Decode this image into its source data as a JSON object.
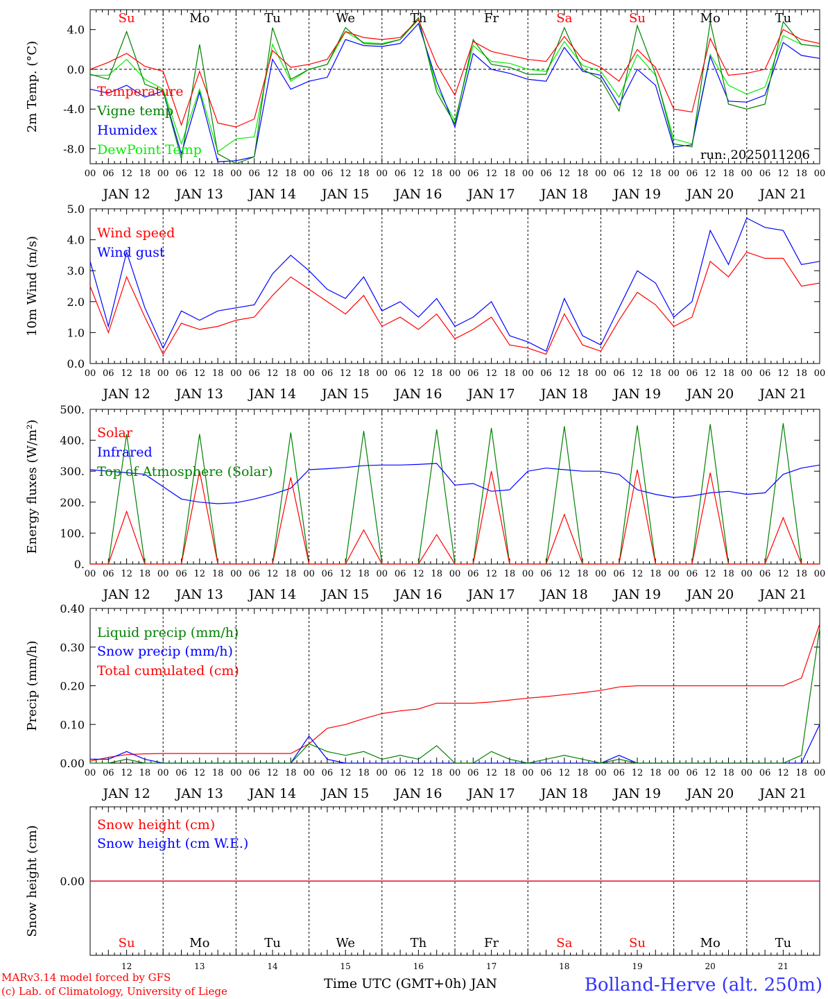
{
  "days": [
    "JAN 12",
    "JAN 13",
    "JAN 14",
    "JAN 15",
    "JAN 16",
    "JAN 17",
    "JAN 18",
    "JAN 19",
    "JAN 20",
    "JAN 21"
  ],
  "weekdays": [
    "Su",
    "Mo",
    "Tu",
    "We",
    "Th",
    "Fr",
    "Sa",
    "Su",
    "Mo",
    "Tu"
  ],
  "weekday_colors": [
    "#ff0000",
    "#000000",
    "#000000",
    "#000000",
    "#000000",
    "#000000",
    "#ff0000",
    "#ff0000",
    "#000000",
    "#000000"
  ],
  "hour_ticks": [
    "00",
    "06",
    "12",
    "18"
  ],
  "bottom_days": [
    "12",
    "13",
    "14",
    "15",
    "16",
    "17",
    "18",
    "19",
    "20",
    "21"
  ],
  "colors": {
    "red": "#ff0000",
    "green": "#008000",
    "blue": "#0000ff",
    "lightgreen": "#00ee00",
    "title_blue": "#3333ff"
  },
  "footer": {
    "model": "MARv3.14 model forced by GFS",
    "lab": "(c) Lab. of Climatology, University of Liege",
    "xlabel": "Time UTC (GMT+0h) JAN",
    "station": "Bolland-Herve (alt. 250m)"
  },
  "chart_data": [
    {
      "type": "line",
      "ylabel": "2m Temp. (°C)",
      "ylim": [
        -9.5,
        6.0
      ],
      "yticks": [
        "4.0",
        "0.0",
        "-4.0",
        "-8.0"
      ],
      "ytick_values": [
        4,
        0,
        -4,
        -8
      ],
      "zero_line": true,
      "run": "run: 2025011206",
      "x_hours": [
        0,
        6,
        12,
        18,
        24,
        30,
        36,
        42,
        48,
        54,
        60,
        66,
        72,
        78,
        84,
        90,
        96,
        102,
        108,
        114,
        120,
        126,
        132,
        138,
        144,
        150,
        156,
        162,
        168,
        174,
        180,
        186,
        192,
        198,
        204,
        210,
        216,
        222,
        228,
        234,
        240
      ],
      "series": [
        {
          "name": "Temperature",
          "color": "#ff0000",
          "values": [
            0.0,
            0.7,
            1.6,
            0.3,
            -0.2,
            -5.6,
            -0.2,
            -5.4,
            -5.8,
            -5.0,
            1.9,
            0.2,
            0.5,
            1.0,
            3.8,
            3.2,
            3.0,
            3.2,
            5.0,
            0.5,
            -2.6,
            2.8,
            1.8,
            1.4,
            1.0,
            0.8,
            3.3,
            1.0,
            0.2,
            -1.2,
            2.0,
            0.2,
            -4.0,
            -4.3,
            3.1,
            -0.6,
            -0.4,
            0.0,
            4.0,
            3.0,
            2.6
          ]
        },
        {
          "name": "Vigne temp",
          "color": "#008000",
          "values": [
            -0.5,
            -1.0,
            3.8,
            -1.5,
            -2.2,
            -9.0,
            2.5,
            -8.5,
            -9.5,
            -8.8,
            4.2,
            -1.0,
            0.0,
            0.5,
            4.2,
            2.6,
            2.5,
            3.0,
            5.2,
            -2.3,
            -5.5,
            3.0,
            0.5,
            0.2,
            -0.5,
            -0.5,
            4.2,
            0.0,
            -1.0,
            -4.2,
            4.4,
            -0.5,
            -7.5,
            -7.8,
            4.8,
            -3.5,
            -4.0,
            -3.5,
            4.8,
            2.5,
            2.3
          ]
        },
        {
          "name": "Humidex",
          "color": "#0000ff",
          "values": [
            -2.0,
            -2.4,
            -1.6,
            -2.8,
            -2.2,
            -8.5,
            -2.3,
            -9.3,
            -9.2,
            -8.8,
            1.0,
            -2.0,
            -1.2,
            -0.8,
            3.0,
            2.4,
            2.3,
            2.6,
            4.6,
            -1.2,
            -5.8,
            1.6,
            0.0,
            -0.4,
            -1.0,
            -1.2,
            2.2,
            -0.2,
            -0.6,
            -3.6,
            0.0,
            -1.6,
            -7.8,
            -7.6,
            1.3,
            -3.2,
            -3.3,
            -2.6,
            2.7,
            1.4,
            1.1
          ]
        },
        {
          "name": "DewPoint Temp",
          "color": "#00ee00",
          "values": [
            -0.6,
            -0.6,
            1.0,
            -1.0,
            -2.0,
            -7.5,
            -2.0,
            -8.3,
            -7.0,
            -6.8,
            2.5,
            -1.2,
            0.0,
            0.5,
            3.8,
            2.7,
            2.6,
            3.0,
            5.0,
            -1.8,
            -5.2,
            2.4,
            0.8,
            0.6,
            0.0,
            -0.2,
            2.8,
            0.4,
            -0.2,
            -2.8,
            1.5,
            -0.6,
            -7.0,
            -7.5,
            1.5,
            -1.6,
            -2.5,
            -1.8,
            3.4,
            2.5,
            2.3
          ]
        }
      ]
    },
    {
      "type": "line",
      "ylabel": "10m Wind (m/s)",
      "ylim": [
        0,
        5.0
      ],
      "yticks": [
        "5.0",
        "4.0",
        "3.0",
        "2.0",
        "1.0",
        "0.0"
      ],
      "ytick_values": [
        5,
        4,
        3,
        2,
        1,
        0
      ],
      "x_hours": [
        0,
        6,
        12,
        18,
        24,
        30,
        36,
        42,
        48,
        54,
        60,
        66,
        72,
        78,
        84,
        90,
        96,
        102,
        108,
        114,
        120,
        126,
        132,
        138,
        144,
        150,
        156,
        162,
        168,
        174,
        180,
        186,
        192,
        198,
        204,
        210,
        216,
        222,
        228,
        234,
        240
      ],
      "series": [
        {
          "name": "Wind speed",
          "color": "#ff0000",
          "values": [
            2.5,
            1.0,
            2.8,
            1.5,
            0.3,
            1.3,
            1.1,
            1.2,
            1.4,
            1.5,
            2.2,
            2.8,
            2.4,
            2.0,
            1.6,
            2.2,
            1.2,
            1.5,
            1.1,
            1.6,
            0.8,
            1.1,
            1.5,
            0.6,
            0.5,
            0.3,
            1.6,
            0.6,
            0.4,
            1.4,
            2.3,
            1.9,
            1.2,
            1.5,
            3.3,
            2.8,
            3.6,
            3.4,
            3.4,
            2.5,
            2.6
          ]
        },
        {
          "name": "Wind gust",
          "color": "#0000ff",
          "values": [
            3.3,
            1.2,
            3.6,
            1.8,
            0.5,
            1.7,
            1.4,
            1.7,
            1.8,
            1.9,
            2.9,
            3.5,
            3.0,
            2.4,
            2.1,
            2.8,
            1.7,
            2.0,
            1.5,
            2.1,
            1.2,
            1.5,
            2.0,
            0.9,
            0.7,
            0.4,
            2.1,
            0.9,
            0.6,
            1.8,
            3.0,
            2.6,
            1.5,
            2.0,
            4.3,
            3.2,
            4.7,
            4.4,
            4.3,
            3.2,
            3.3
          ]
        }
      ]
    },
    {
      "type": "line",
      "ylabel": "Energy fluxes (W/m²)",
      "ylim": [
        0,
        500
      ],
      "yticks": [
        "500.",
        "400.",
        "300.",
        "200.",
        "100.",
        "0."
      ],
      "ytick_values": [
        500,
        400,
        300,
        200,
        100,
        0
      ],
      "x_hours": [
        0,
        6,
        12,
        18,
        24,
        30,
        36,
        42,
        48,
        54,
        60,
        66,
        72,
        78,
        84,
        90,
        96,
        102,
        108,
        114,
        120,
        126,
        132,
        138,
        144,
        150,
        156,
        162,
        168,
        174,
        180,
        186,
        192,
        198,
        204,
        210,
        216,
        222,
        228,
        234,
        240
      ],
      "series": [
        {
          "name": "Solar",
          "color": "#ff0000",
          "values": [
            0,
            0,
            170,
            0,
            0,
            0,
            300,
            0,
            0,
            0,
            0,
            280,
            0,
            0,
            0,
            110,
            0,
            0,
            0,
            95,
            0,
            0,
            300,
            0,
            0,
            0,
            160,
            0,
            0,
            0,
            305,
            0,
            0,
            0,
            295,
            0,
            0,
            0,
            150,
            0,
            0
          ]
        },
        {
          "name": "Infrared",
          "color": "#0000ff",
          "values": [
            305,
            300,
            295,
            290,
            250,
            210,
            200,
            195,
            198,
            210,
            225,
            245,
            305,
            308,
            312,
            318,
            320,
            320,
            322,
            325,
            255,
            260,
            235,
            240,
            300,
            310,
            305,
            300,
            300,
            290,
            240,
            225,
            215,
            220,
            230,
            235,
            225,
            230,
            290,
            310,
            320
          ]
        },
        {
          "name": "Top of Atmosphere (Solar)",
          "color": "#008000",
          "values": [
            0,
            0,
            420,
            0,
            0,
            0,
            420,
            0,
            0,
            0,
            0,
            425,
            0,
            0,
            0,
            430,
            0,
            0,
            0,
            435,
            0,
            0,
            440,
            0,
            0,
            0,
            445,
            0,
            0,
            0,
            448,
            0,
            0,
            0,
            452,
            0,
            0,
            0,
            455,
            0,
            0
          ]
        }
      ]
    },
    {
      "type": "line",
      "ylabel": "Precip (mm/h)",
      "ylim": [
        0,
        0.4
      ],
      "yticks": [
        "0.40",
        "0.30",
        "0.20",
        "0.10",
        "0.00"
      ],
      "ytick_values": [
        0.4,
        0.3,
        0.2,
        0.1,
        0.0
      ],
      "x_hours": [
        0,
        6,
        12,
        18,
        24,
        30,
        36,
        42,
        48,
        54,
        60,
        66,
        72,
        78,
        84,
        90,
        96,
        102,
        108,
        114,
        120,
        126,
        132,
        138,
        144,
        150,
        156,
        162,
        168,
        174,
        180,
        186,
        192,
        198,
        204,
        210,
        216,
        222,
        228,
        234,
        240
      ],
      "series": [
        {
          "name": "Liquid precip (mm/h)",
          "color": "#008000",
          "values": [
            0.0,
            0.0,
            0.01,
            0.0,
            0.0,
            0.0,
            0.0,
            0.0,
            0.0,
            0.0,
            0.0,
            0.0,
            0.05,
            0.03,
            0.02,
            0.03,
            0.01,
            0.02,
            0.01,
            0.045,
            0.0,
            0.0,
            0.03,
            0.01,
            0.0,
            0.01,
            0.02,
            0.01,
            0.0,
            0.01,
            0.0,
            0.0,
            0.0,
            0.0,
            0.0,
            0.0,
            0.0,
            0.0,
            0.0,
            0.02,
            0.35
          ]
        },
        {
          "name": "Snow precip (mm/h)",
          "color": "#0000ff",
          "values": [
            0.01,
            0.01,
            0.03,
            0.01,
            0.0,
            0.0,
            0.0,
            0.0,
            0.0,
            0.0,
            0.0,
            0.0,
            0.07,
            0.01,
            0.0,
            0.0,
            0.0,
            0.0,
            0.0,
            0.0,
            0.0,
            0.0,
            0.0,
            0.0,
            0.0,
            0.0,
            0.0,
            0.0,
            0.0,
            0.02,
            0.0,
            0.0,
            0.0,
            0.0,
            0.0,
            0.0,
            0.0,
            0.0,
            0.0,
            0.0,
            0.1
          ]
        },
        {
          "name": "Total cumulated (cm)",
          "color": "#ff0000",
          "values": [
            0.005,
            0.015,
            0.022,
            0.024,
            0.025,
            0.025,
            0.025,
            0.025,
            0.025,
            0.025,
            0.025,
            0.025,
            0.05,
            0.09,
            0.1,
            0.115,
            0.128,
            0.135,
            0.14,
            0.155,
            0.155,
            0.155,
            0.158,
            0.163,
            0.168,
            0.172,
            0.177,
            0.182,
            0.188,
            0.197,
            0.2,
            0.2,
            0.2,
            0.2,
            0.2,
            0.2,
            0.2,
            0.2,
            0.2,
            0.22,
            0.36
          ]
        }
      ]
    },
    {
      "type": "line",
      "ylabel": "Snow height (cm)",
      "ylim": [
        -1,
        1
      ],
      "yticks": [
        "0.00"
      ],
      "ytick_values": [
        0
      ],
      "x_hours": [
        0,
        240
      ],
      "series": [
        {
          "name": "Snow height (cm)",
          "color": "#ff0000",
          "values": [
            0,
            0
          ]
        },
        {
          "name": "Snow height (cm W.E.)",
          "color": "#0000ff",
          "values": [
            0,
            0
          ]
        }
      ]
    }
  ]
}
